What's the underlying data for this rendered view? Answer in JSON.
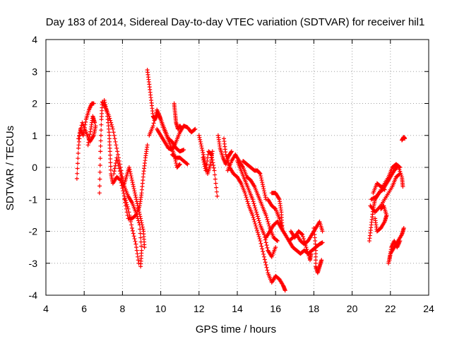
{
  "chart_data": {
    "type": "scatter",
    "title": "Day 183 of 2014, Sidereal Day-to-day VTEC variation (SDTVAR) for receiver hil1",
    "xlabel": "GPS time / hours",
    "ylabel": "SDTVAR / TECUs",
    "xlim": [
      4,
      24
    ],
    "ylim": [
      -4,
      4
    ],
    "xticks": [
      4,
      6,
      8,
      10,
      12,
      14,
      16,
      18,
      20,
      22,
      24
    ],
    "yticks": [
      -4,
      -3,
      -2,
      -1,
      0,
      1,
      2,
      3,
      4
    ],
    "grid": true,
    "marker": "+",
    "series_color": "#ff0000",
    "tracks": [
      [
        [
          5.62,
          -0.35
        ],
        [
          5.7,
          0.6
        ],
        [
          5.8,
          1.2
        ],
        [
          5.95,
          1.0
        ],
        [
          6.1,
          1.5
        ],
        [
          6.25,
          1.8
        ],
        [
          6.4,
          2.0
        ],
        [
          6.5,
          2.0
        ]
      ],
      [
        [
          5.7,
          0.9
        ],
        [
          5.9,
          1.4
        ],
        [
          6.1,
          1.1
        ],
        [
          6.3,
          0.8
        ],
        [
          6.5,
          1.0
        ],
        [
          6.6,
          1.3
        ]
      ],
      [
        [
          6.2,
          0.7
        ],
        [
          6.35,
          1.2
        ],
        [
          6.45,
          1.6
        ],
        [
          6.55,
          1.4
        ]
      ],
      [
        [
          6.8,
          -0.8
        ],
        [
          6.85,
          0.5
        ],
        [
          6.9,
          1.5
        ],
        [
          6.95,
          2.05
        ],
        [
          7.1,
          1.9
        ],
        [
          7.3,
          1.6
        ],
        [
          7.5,
          1.2
        ],
        [
          7.7,
          0.6
        ],
        [
          7.9,
          0.0
        ],
        [
          8.1,
          -0.6
        ],
        [
          8.3,
          -0.9
        ],
        [
          8.5,
          -1.1
        ],
        [
          8.7,
          -1.4
        ],
        [
          8.9,
          -1.8
        ],
        [
          9.0,
          -2.6
        ],
        [
          8.95,
          -3.1
        ]
      ],
      [
        [
          7.05,
          2.1
        ],
        [
          7.2,
          1.7
        ],
        [
          7.3,
          1.1
        ],
        [
          7.35,
          0.5
        ],
        [
          7.4,
          -0.2
        ],
        [
          7.5,
          -0.5
        ],
        [
          7.7,
          -0.3
        ],
        [
          7.9,
          -0.4
        ],
        [
          8.1,
          -0.9
        ],
        [
          8.3,
          -1.3
        ],
        [
          8.5,
          -1.9
        ],
        [
          8.7,
          -2.4
        ],
        [
          8.85,
          -3.0
        ]
      ],
      [
        [
          7.55,
          -0.2
        ],
        [
          7.7,
          0.3
        ],
        [
          7.9,
          -0.2
        ],
        [
          8.05,
          -0.6
        ],
        [
          8.2,
          -0.3
        ],
        [
          8.35,
          0.0
        ],
        [
          8.5,
          -0.4
        ],
        [
          8.65,
          -0.8
        ],
        [
          8.8,
          -1.2
        ],
        [
          8.95,
          -1.6
        ],
        [
          9.1,
          -2.0
        ],
        [
          9.15,
          -2.5
        ]
      ],
      [
        [
          8.1,
          -1.0
        ],
        [
          8.3,
          -1.6
        ],
        [
          8.5,
          -1.6
        ],
        [
          8.7,
          -1.5
        ],
        [
          8.9,
          -1.2
        ],
        [
          9.0,
          -0.8
        ],
        [
          9.1,
          -0.2
        ],
        [
          9.2,
          0.3
        ],
        [
          9.3,
          0.7
        ]
      ],
      [
        [
          9.3,
          3.05
        ],
        [
          9.4,
          2.6
        ],
        [
          9.5,
          2.1
        ],
        [
          9.6,
          1.6
        ],
        [
          9.7,
          1.5
        ],
        [
          9.85,
          1.7
        ],
        [
          10.0,
          1.5
        ],
        [
          10.2,
          1.2
        ],
        [
          10.4,
          0.9
        ],
        [
          10.6,
          0.8
        ],
        [
          10.8,
          0.6
        ],
        [
          11.0,
          0.5
        ],
        [
          11.2,
          0.55
        ]
      ],
      [
        [
          9.4,
          1.0
        ],
        [
          9.6,
          1.3
        ],
        [
          9.8,
          1.8
        ],
        [
          9.95,
          1.6
        ],
        [
          10.1,
          1.3
        ],
        [
          10.3,
          1.0
        ],
        [
          10.5,
          0.7
        ],
        [
          10.7,
          0.4
        ],
        [
          10.85,
          0.0
        ],
        [
          11.0,
          0.1
        ]
      ],
      [
        [
          9.8,
          1.2
        ],
        [
          10.0,
          1.0
        ],
        [
          10.2,
          0.8
        ],
        [
          10.4,
          0.6
        ],
        [
          10.6,
          0.55
        ],
        [
          10.8,
          0.8
        ],
        [
          11.0,
          1.1
        ],
        [
          11.2,
          1.3
        ],
        [
          11.4,
          1.25
        ],
        [
          11.6,
          1.1
        ],
        [
          11.8,
          1.2
        ]
      ],
      [
        [
          10.7,
          2.0
        ],
        [
          10.75,
          1.7
        ],
        [
          10.8,
          1.4
        ],
        [
          10.9,
          1.2
        ],
        [
          11.0,
          1.3
        ],
        [
          11.1,
          1.2
        ]
      ],
      [
        [
          10.6,
          0.4
        ],
        [
          10.8,
          0.3
        ],
        [
          11.0,
          0.3
        ],
        [
          11.2,
          0.2
        ],
        [
          11.4,
          0.1
        ]
      ],
      [
        [
          12.0,
          1.0
        ],
        [
          12.15,
          0.6
        ],
        [
          12.3,
          0.2
        ],
        [
          12.45,
          -0.2
        ],
        [
          12.6,
          0.1
        ],
        [
          12.7,
          0.5
        ]
      ],
      [
        [
          12.2,
          0.3
        ],
        [
          12.35,
          -0.1
        ],
        [
          12.5,
          0.5
        ],
        [
          12.65,
          0.4
        ],
        [
          12.8,
          -0.1
        ],
        [
          12.95,
          -0.9
        ]
      ],
      [
        [
          13.0,
          1.0
        ],
        [
          13.1,
          0.6
        ],
        [
          13.25,
          0.3
        ],
        [
          13.4,
          0.1
        ],
        [
          13.55,
          0.35
        ],
        [
          13.7,
          0.5
        ]
      ],
      [
        [
          13.3,
          0.9
        ],
        [
          13.4,
          0.4
        ],
        [
          13.6,
          0.0
        ],
        [
          13.8,
          -0.2
        ],
        [
          14.0,
          -0.3
        ],
        [
          14.2,
          -0.5
        ],
        [
          14.4,
          -0.8
        ],
        [
          14.6,
          -1.2
        ],
        [
          14.8,
          -1.5
        ],
        [
          15.0,
          -1.9
        ],
        [
          15.2,
          -2.3
        ],
        [
          15.4,
          -2.8
        ],
        [
          15.6,
          -3.3
        ],
        [
          15.8,
          -3.6
        ],
        [
          16.0,
          -3.4
        ],
        [
          16.2,
          -3.5
        ],
        [
          16.4,
          -3.7
        ],
        [
          16.5,
          -3.85
        ]
      ],
      [
        [
          13.5,
          -0.1
        ],
        [
          13.7,
          0.2
        ],
        [
          13.9,
          0.4
        ],
        [
          14.1,
          0.2
        ],
        [
          14.3,
          0.0
        ],
        [
          14.5,
          -0.3
        ],
        [
          14.7,
          -0.4
        ],
        [
          14.9,
          -0.6
        ],
        [
          15.1,
          -0.9
        ],
        [
          15.3,
          -1.2
        ],
        [
          15.5,
          -1.5
        ],
        [
          15.7,
          -1.9
        ],
        [
          15.9,
          -2.2
        ],
        [
          16.1,
          -2.3
        ]
      ],
      [
        [
          14.0,
          0.2
        ],
        [
          14.2,
          -0.1
        ],
        [
          14.4,
          -0.4
        ],
        [
          14.6,
          -0.7
        ],
        [
          14.8,
          -1.0
        ],
        [
          15.0,
          -1.4
        ],
        [
          15.2,
          -1.8
        ],
        [
          15.4,
          -2.1
        ],
        [
          15.6,
          -2.6
        ],
        [
          15.8,
          -2.8
        ],
        [
          16.0,
          -2.5
        ]
      ],
      [
        [
          14.3,
          0.2
        ],
        [
          14.5,
          0.1
        ],
        [
          14.7,
          0.0
        ],
        [
          14.9,
          -0.1
        ],
        [
          15.05,
          -0.1
        ],
        [
          15.2,
          -0.2
        ],
        [
          15.35,
          -0.6
        ],
        [
          15.5,
          -1.0
        ]
      ],
      [
        [
          15.6,
          -1.0
        ],
        [
          15.8,
          -1.2
        ],
        [
          16.0,
          -1.3
        ],
        [
          16.2,
          -1.6
        ],
        [
          16.35,
          -1.9
        ],
        [
          16.3,
          -1.4
        ],
        [
          16.2,
          -1.0
        ],
        [
          16.0,
          -0.8
        ],
        [
          15.8,
          -0.8
        ]
      ],
      [
        [
          15.5,
          -2.2
        ],
        [
          15.7,
          -2.0
        ],
        [
          15.9,
          -1.8
        ],
        [
          16.1,
          -1.7
        ],
        [
          16.3,
          -1.9
        ],
        [
          16.5,
          -2.1
        ],
        [
          16.7,
          -2.3
        ],
        [
          16.9,
          -2.2
        ],
        [
          17.1,
          -2.1
        ],
        [
          17.3,
          -2.3
        ],
        [
          17.5,
          -2.4
        ],
        [
          17.7,
          -2.3
        ],
        [
          17.9,
          -2.1
        ],
        [
          18.1,
          -1.9
        ],
        [
          18.3,
          -1.7
        ],
        [
          18.45,
          -2.0
        ]
      ],
      [
        [
          16.7,
          -2.3
        ],
        [
          16.9,
          -2.5
        ],
        [
          17.1,
          -2.6
        ],
        [
          17.3,
          -2.7
        ],
        [
          17.5,
          -2.6
        ],
        [
          17.7,
          -2.7
        ],
        [
          17.9,
          -2.6
        ],
        [
          18.1,
          -2.5
        ],
        [
          18.3,
          -2.4
        ],
        [
          18.45,
          -2.35
        ]
      ],
      [
        [
          16.8,
          -2.0
        ],
        [
          17.0,
          -2.2
        ],
        [
          17.2,
          -2.0
        ],
        [
          17.4,
          -2.1
        ],
        [
          17.6,
          -2.5
        ],
        [
          17.8,
          -2.9
        ],
        [
          17.85,
          -2.7
        ]
      ],
      [
        [
          18.0,
          -1.9
        ],
        [
          18.1,
          -2.5
        ],
        [
          18.1,
          -3.1
        ],
        [
          18.2,
          -3.3
        ],
        [
          18.3,
          -3.1
        ],
        [
          18.4,
          -2.9
        ]
      ],
      [
        [
          20.9,
          -2.3
        ],
        [
          21.0,
          -1.8
        ],
        [
          21.1,
          -1.3
        ],
        [
          21.2,
          -1.0
        ],
        [
          21.4,
          -0.8
        ],
        [
          21.6,
          -0.7
        ],
        [
          21.8,
          -0.5
        ],
        [
          22.0,
          -0.3
        ],
        [
          22.2,
          -0.1
        ],
        [
          22.4,
          0.05
        ],
        [
          22.6,
          -0.3
        ],
        [
          22.65,
          -0.6
        ]
      ],
      [
        [
          20.95,
          -1.2
        ],
        [
          21.2,
          -1.4
        ],
        [
          21.5,
          -1.2
        ],
        [
          21.8,
          -0.9
        ],
        [
          22.1,
          -0.6
        ],
        [
          22.3,
          -0.3
        ],
        [
          22.5,
          -0.2
        ]
      ],
      [
        [
          21.0,
          -1.0
        ],
        [
          21.3,
          -0.9
        ],
        [
          21.6,
          -0.6
        ],
        [
          21.9,
          -0.3
        ],
        [
          22.1,
          0.0
        ],
        [
          22.3,
          0.1
        ],
        [
          22.5,
          0.0
        ]
      ],
      [
        [
          21.2,
          -1.6
        ],
        [
          21.3,
          -2.0
        ],
        [
          21.5,
          -1.9
        ],
        [
          21.7,
          -1.7
        ],
        [
          21.8,
          -1.5
        ],
        [
          21.65,
          -1.2
        ],
        [
          21.5,
          -1.3
        ]
      ],
      [
        [
          21.1,
          -0.8
        ],
        [
          21.3,
          -0.5
        ],
        [
          21.5,
          -0.6
        ],
        [
          21.7,
          -0.7
        ]
      ],
      [
        [
          21.9,
          -3.0
        ],
        [
          22.0,
          -2.7
        ],
        [
          22.2,
          -2.5
        ],
        [
          22.4,
          -2.3
        ],
        [
          22.6,
          -2.1
        ],
        [
          22.7,
          -1.9
        ]
      ],
      [
        [
          21.95,
          -2.9
        ],
        [
          22.05,
          -2.5
        ],
        [
          22.2,
          -2.3
        ],
        [
          22.35,
          -2.5
        ],
        [
          22.5,
          -2.3
        ]
      ],
      [
        [
          22.6,
          0.85
        ],
        [
          22.7,
          0.95
        ],
        [
          22.75,
          0.9
        ]
      ]
    ]
  }
}
